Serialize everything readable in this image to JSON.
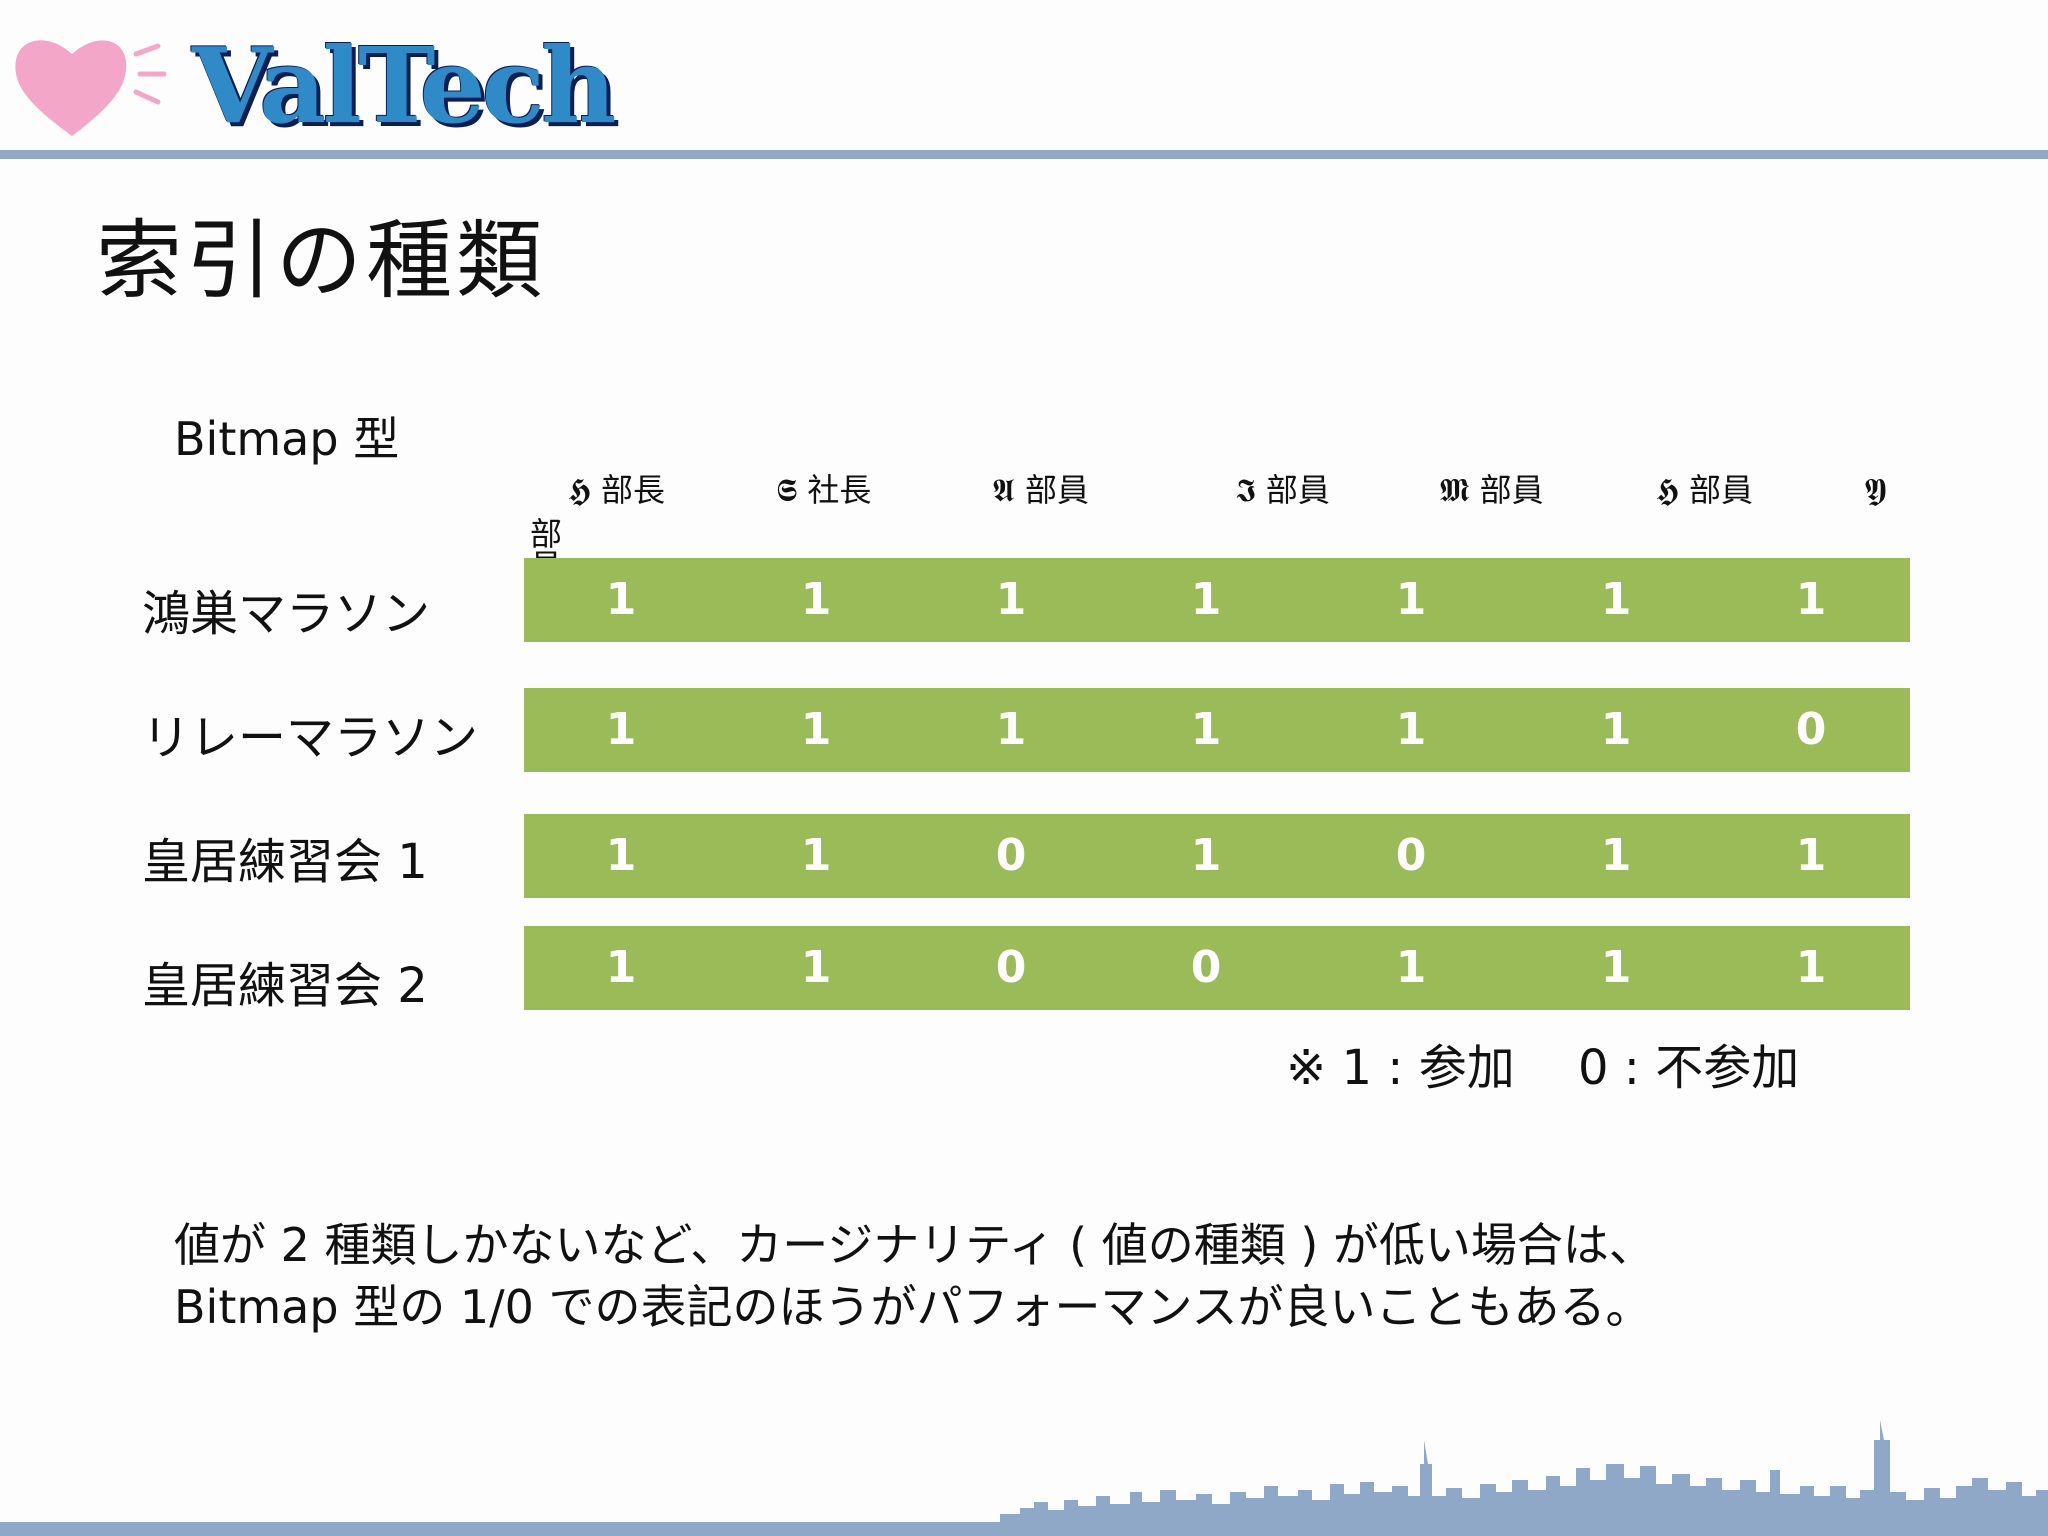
{
  "header": {
    "logo_text": "ValTech",
    "heart_icon": "heart-icon",
    "colors": {
      "rule": "#8fa8c8",
      "logo_fill": "#2f8ac8",
      "logo_outline": "#0b1f55",
      "heart": "#f4a6c8"
    }
  },
  "slide": {
    "title": "索引の種類",
    "section_label": "Bitmap 型",
    "columns": [
      "𝕳 部長",
      "𝕾 社長",
      "𝕬 部員",
      "𝕴 部員",
      "𝕸 部員",
      "𝕳 部員",
      "𝖄"
    ],
    "column_wrap": "部員",
    "rows": [
      {
        "label": "鴻巣マラソン",
        "values": [
          "1",
          "1",
          "1",
          "1",
          "1",
          "1",
          "1"
        ]
      },
      {
        "label": "リレーマラソン",
        "values": [
          "1",
          "1",
          "1",
          "1",
          "1",
          "1",
          "0"
        ]
      },
      {
        "label": "皇居練習会 1",
        "values": [
          "1",
          "1",
          "0",
          "1",
          "0",
          "1",
          "1"
        ]
      },
      {
        "label": "皇居練習会 2",
        "values": [
          "1",
          "1",
          "0",
          "0",
          "1",
          "1",
          "1"
        ]
      }
    ],
    "legend": "※ 1 : 参加　 0 : 不参加",
    "note_line1": "値が 2 種類しかないなど、カージナリティ ( 値の種類 ) が低い場合は、",
    "note_line2": "Bitmap 型の 1/0 での表記のほうがパフォーマンスが良いこともある。",
    "bar_color": "#9bbb59"
  },
  "footer": {
    "skyline_icon": "city-skyline-icon"
  }
}
